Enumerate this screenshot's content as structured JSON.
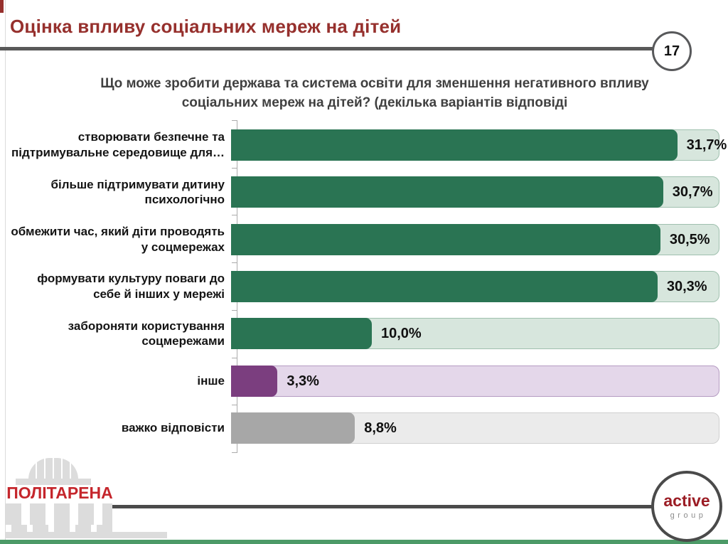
{
  "slide": {
    "page_number": "17",
    "title": "Оцінка впливу соціальних мереж на дітей",
    "subtitle_line1": "Що може зробити держава та система освіти для зменшення негативного впливу",
    "subtitle_line2": "соціальних мереж на дітей? (декілька варіантів відповіді"
  },
  "chart_data": {
    "type": "bar",
    "orientation": "horizontal",
    "unit": "%",
    "axis_max": 34.6,
    "grid": false,
    "legend": "none",
    "rows": [
      {
        "label_lines": [
          "створювати безпечне та",
          "підтримувальне середовище для…"
        ],
        "value": 31.7,
        "value_label": "31,7%",
        "palette": "green"
      },
      {
        "label_lines": [
          "більше підтримувати дитину",
          "психологічно"
        ],
        "value": 30.7,
        "value_label": "30,7%",
        "palette": "green"
      },
      {
        "label_lines": [
          "обмежити час, який діти проводять",
          "у соцмережах"
        ],
        "value": 30.5,
        "value_label": "30,5%",
        "palette": "green"
      },
      {
        "label_lines": [
          "формувати культуру поваги до",
          "себе й інших у мережі"
        ],
        "value": 30.3,
        "value_label": "30,3%",
        "palette": "green"
      },
      {
        "label_lines": [
          "забороняти користування",
          "соцмережами"
        ],
        "value": 10.0,
        "value_label": "10,0%",
        "palette": "green"
      },
      {
        "label_lines": [
          "інше"
        ],
        "value": 3.3,
        "value_label": "3,3%",
        "palette": "purple"
      },
      {
        "label_lines": [
          "важко відповісти"
        ],
        "value": 8.8,
        "value_label": "8,8%",
        "palette": "gray"
      }
    ],
    "palettes": {
      "green": {
        "bar": "#2A7453",
        "track": "#D7E6DD",
        "track_border": "#9FC0AE"
      },
      "purple": {
        "bar": "#7B3E7F",
        "track": "#E4D7EA",
        "track_border": "#B59BC2"
      },
      "gray": {
        "bar": "#A7A7A7",
        "track": "#EBEBEB",
        "track_border": "#CFCFCF"
      }
    }
  },
  "footer": {
    "logo_left_text": "ПОЛІТАРЕНА",
    "logo_right_line1": "active",
    "logo_right_line2": "group"
  },
  "colors": {
    "title": "#96302D",
    "subtitle": "#404040",
    "header_line": "#595959",
    "footer_line": "#4A4A4A",
    "axis": "#ABABAB",
    "bottom_accent": "#4C9A67",
    "logo_red": "#C5262C",
    "logo_gray": "#DCDCDC",
    "active_red": "#9B1C24"
  }
}
